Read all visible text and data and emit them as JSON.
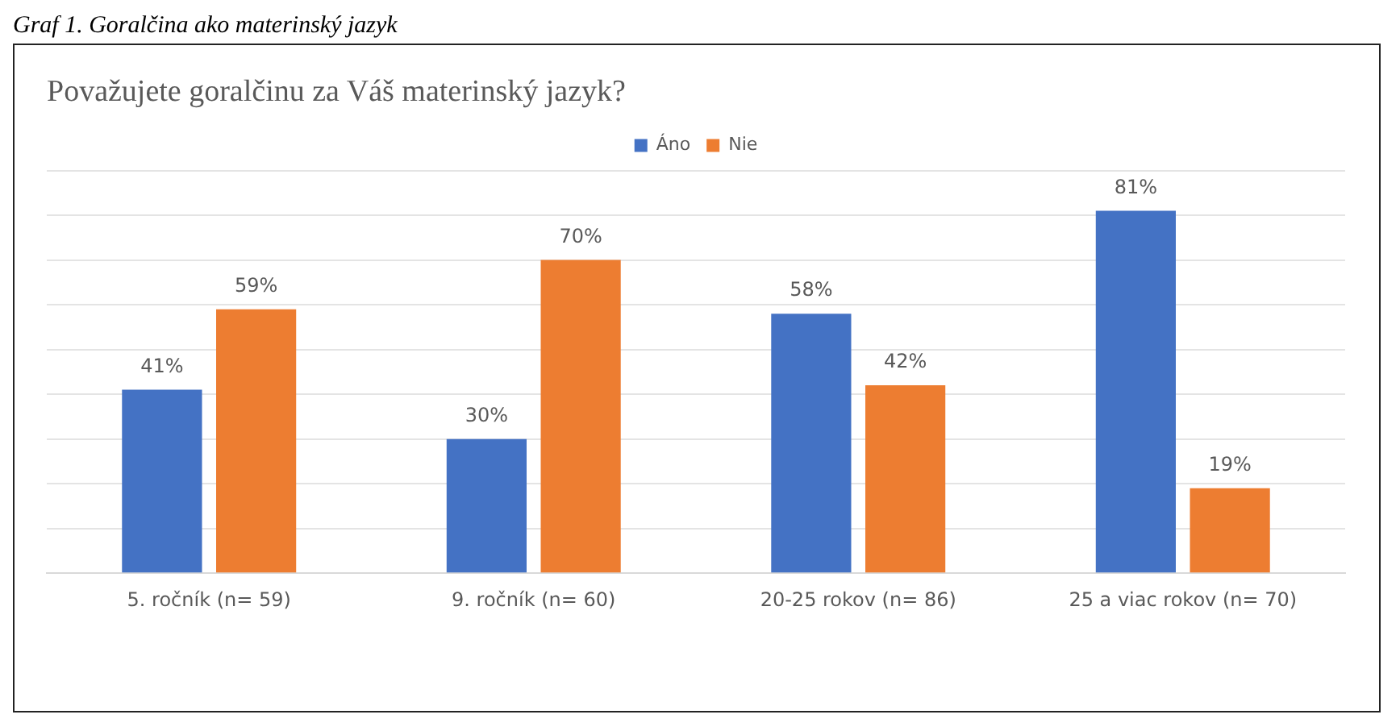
{
  "chart_data": {
    "type": "bar",
    "title": "Považujete goralčinu za Váš materinský jazyk?",
    "annotations": [
      "Graf 1. Goralčina ako materinský jazyk"
    ],
    "categories": [
      "5. ročník (n= 59)",
      "9. ročník (n= 60)",
      "20-25 rokov (n= 86)",
      "25 a viac rokov (n= 70)"
    ],
    "series": [
      {
        "name": "Áno",
        "color": "#4472c4",
        "values": [
          41,
          30,
          58,
          81
        ],
        "value_labels": [
          "41%",
          "30%",
          "58%",
          "81%"
        ]
      },
      {
        "name": "Nie",
        "color": "#ed7d31",
        "values": [
          59,
          70,
          42,
          19
        ],
        "value_labels": [
          "59%",
          "70%",
          "42%",
          "19%"
        ]
      }
    ],
    "ylim": [
      0,
      90
    ],
    "yticks": [
      {
        "value": 0,
        "label": null
      },
      {
        "value": 10,
        "label": null
      },
      {
        "value": 20,
        "label": null
      },
      {
        "value": 30,
        "label": null
      },
      {
        "value": 40,
        "label": null
      },
      {
        "value": 50,
        "label": null
      },
      {
        "value": 60,
        "label": null
      },
      {
        "value": 70,
        "label": null
      },
      {
        "value": 80,
        "label": null
      },
      {
        "value": 90,
        "label": null
      }
    ],
    "grid": "y",
    "legend": "top",
    "tick_labels": "x"
  }
}
